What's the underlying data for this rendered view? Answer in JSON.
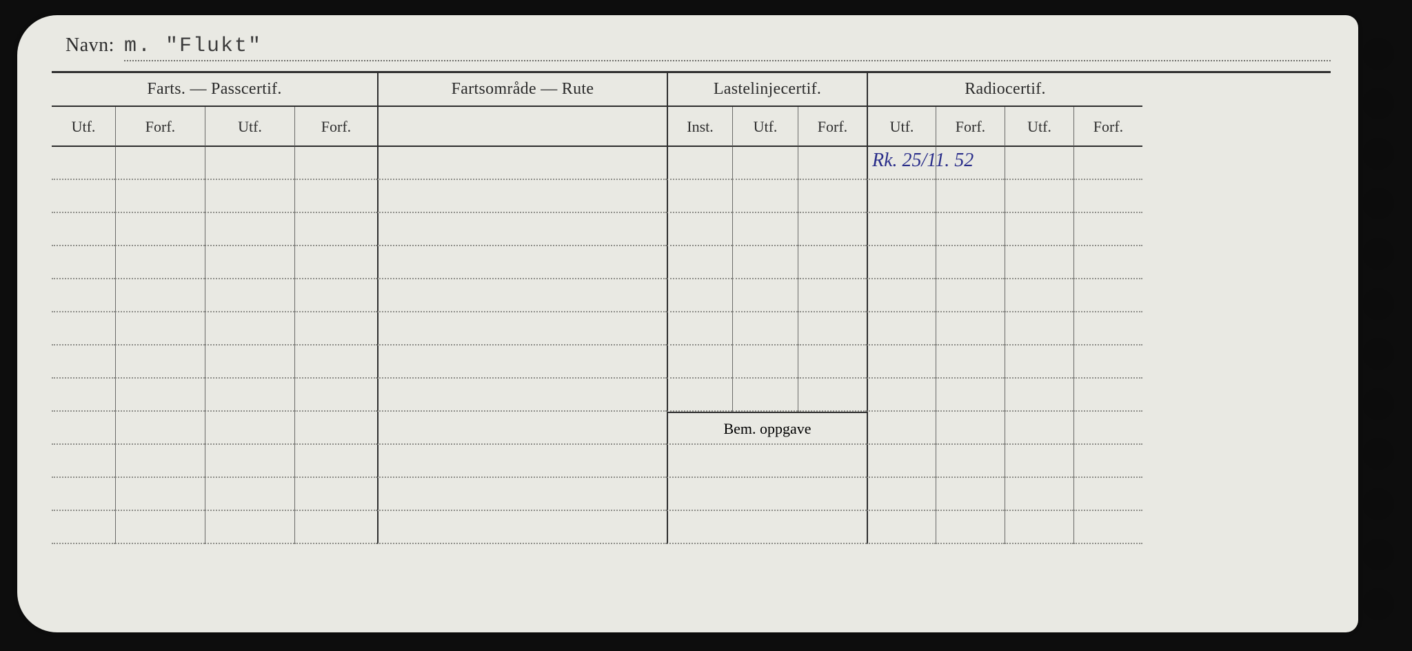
{
  "navn": {
    "label": "Navn:",
    "value": "m. \"Flukt\""
  },
  "headers": {
    "farts": "Farts. — Passcertif.",
    "route": "Fartsområde — Rute",
    "laste": "Lastelinjecertif.",
    "radio": "Radiocertif.",
    "utf": "Utf.",
    "forf": "Forf.",
    "inst": "Inst.",
    "bem": "Bem. oppgave"
  },
  "radio_entry": "Rk. 25/11. 52",
  "layout": {
    "data_rows_before_bem": 8,
    "bem_rows_after_label": 3,
    "punch_holes": 12,
    "colors": {
      "card_bg": "#e9e9e3",
      "scanner_bg": "#0d0d0d",
      "ink": "#2d2d2d",
      "dotted": "#8d8d88",
      "handwriting": "#2a2e8a"
    }
  }
}
